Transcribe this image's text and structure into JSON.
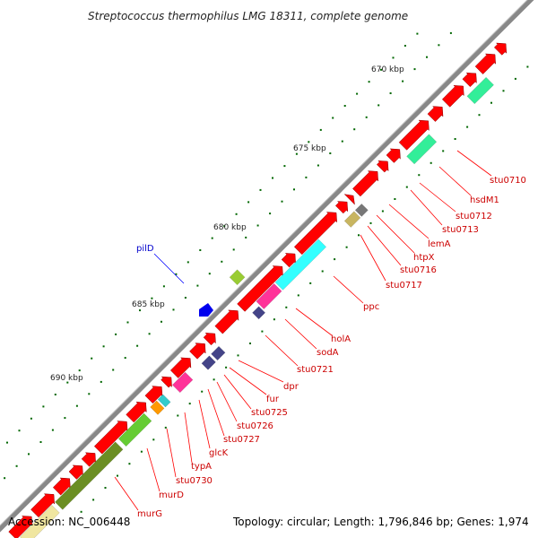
{
  "title": "Streptococcus thermophilus LMG 18311, complete genome",
  "accession_text": "Accession: NC_006448",
  "summary_text": "Topology: circular; Length: 1,796,846 bp; Genes: 1,974",
  "kbp_labels": [
    "670 kbp",
    "675 kbp",
    "680 kbp",
    "685 kbp",
    "690 kbp"
  ],
  "genes": [
    {
      "name": "stu0710",
      "color": "#cc0000"
    },
    {
      "name": "hsdM1",
      "color": "#cc0000"
    },
    {
      "name": "stu0712",
      "color": "#cc0000"
    },
    {
      "name": "stu0713",
      "color": "#cc0000"
    },
    {
      "name": "lemA",
      "color": "#cc0000"
    },
    {
      "name": "htpX",
      "color": "#cc0000"
    },
    {
      "name": "stu0716",
      "color": "#cc0000"
    },
    {
      "name": "stu0717",
      "color": "#cc0000"
    },
    {
      "name": "ppc",
      "color": "#cc0000"
    },
    {
      "name": "holA",
      "color": "#cc0000"
    },
    {
      "name": "sodA",
      "color": "#cc0000"
    },
    {
      "name": "stu0721",
      "color": "#cc0000"
    },
    {
      "name": "dpr",
      "color": "#cc0000"
    },
    {
      "name": "fur",
      "color": "#cc0000"
    },
    {
      "name": "stu0725",
      "color": "#cc0000"
    },
    {
      "name": "stu0726",
      "color": "#cc0000"
    },
    {
      "name": "stu0727",
      "color": "#cc0000"
    },
    {
      "name": "glcK",
      "color": "#cc0000"
    },
    {
      "name": "typA",
      "color": "#cc0000"
    },
    {
      "name": "stu0730",
      "color": "#cc0000"
    },
    {
      "name": "murD",
      "color": "#cc0000"
    },
    {
      "name": "murG",
      "color": "#cc0000"
    },
    {
      "name": "pilD",
      "color": "#0000cc"
    }
  ],
  "colors": {
    "forward_cds": "#ff0000",
    "backbone": "#888888",
    "label_line": "#ff0000",
    "pilD_line": "#0000ff",
    "gc_dots": "#006600"
  }
}
